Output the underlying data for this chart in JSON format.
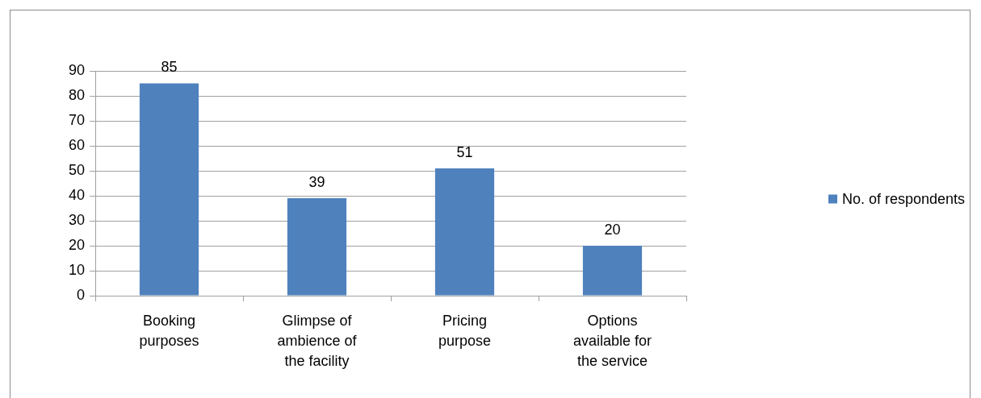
{
  "chart_data": {
    "type": "bar",
    "categories": [
      "Booking purposes",
      "Glimpse of ambience of the facility",
      "Pricing purpose",
      "Options available for the service"
    ],
    "series": [
      {
        "name": "No. of respondents",
        "color": "#4f81bd",
        "values": [
          85,
          39,
          51,
          20
        ]
      }
    ],
    "ylim": [
      0,
      90
    ],
    "yticks": [
      0,
      10,
      20,
      30,
      40,
      50,
      60,
      70,
      80,
      90
    ],
    "grid": "y",
    "legend": "right",
    "data_labels": true
  }
}
